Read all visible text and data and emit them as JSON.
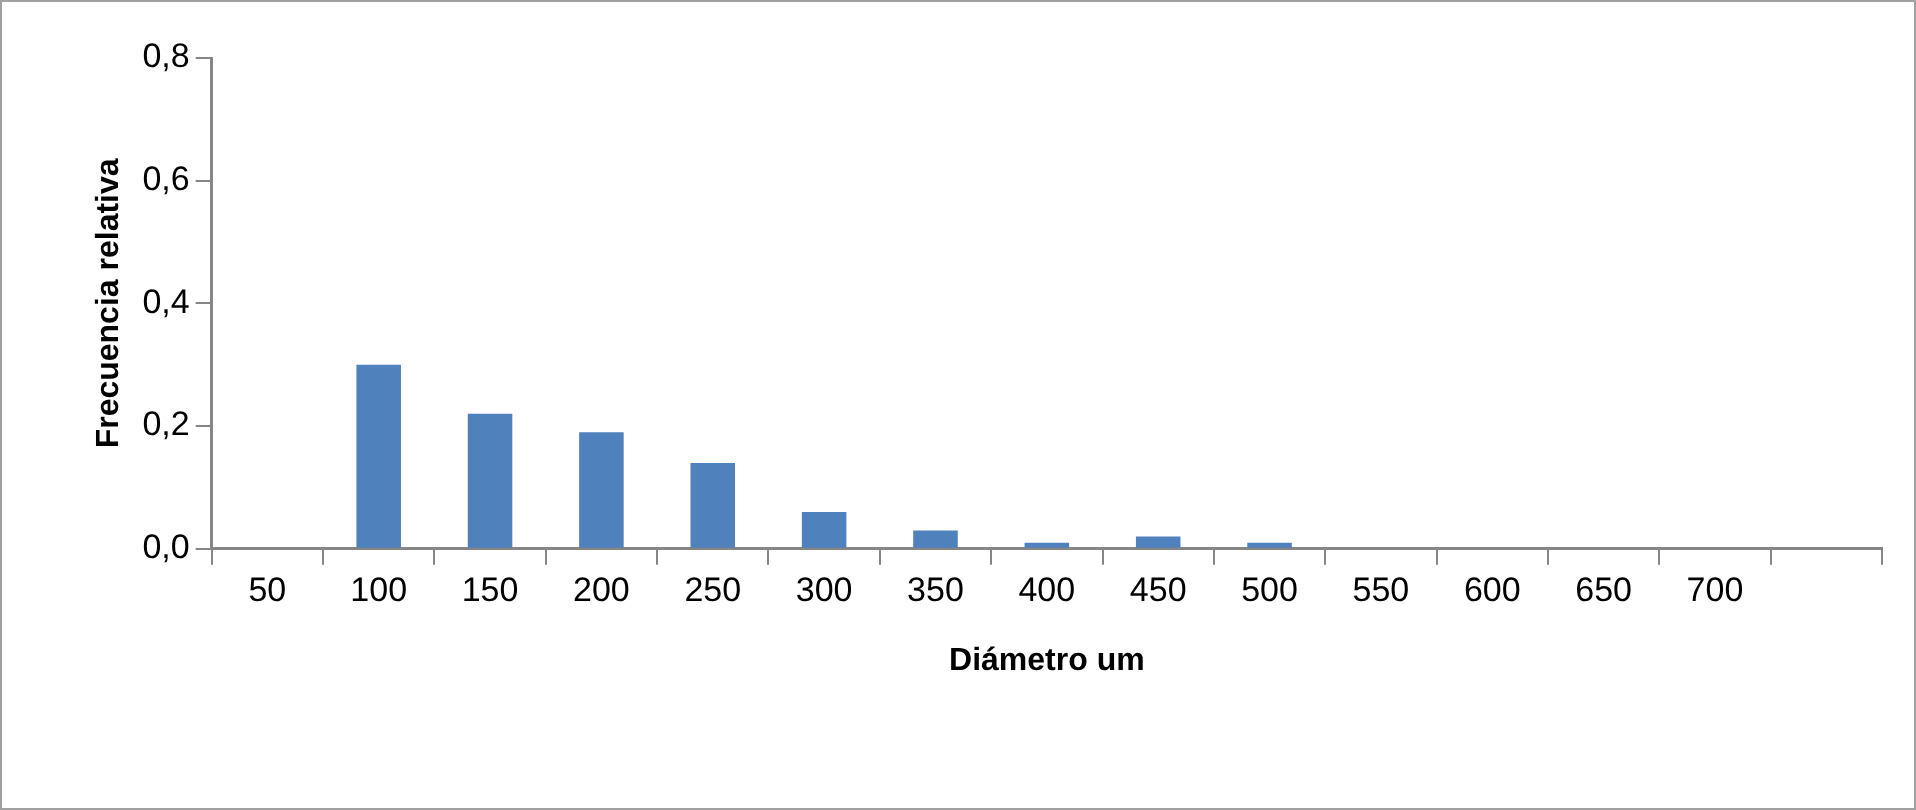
{
  "chart_data": {
    "type": "bar",
    "xlabel": "Diámetro um",
    "ylabel": "Frecuencia relativa",
    "categories": [
      "50",
      "100",
      "150",
      "200",
      "250",
      "300",
      "350",
      "400",
      "450",
      "500",
      "550",
      "600",
      "650",
      "700",
      null
    ],
    "values": [
      0,
      0.3,
      0.22,
      0.19,
      0.14,
      0.06,
      0.03,
      0.01,
      0.02,
      0.01,
      0,
      0,
      0,
      0,
      0
    ],
    "color": "#4f81bd",
    "ylim": [
      0,
      0.8
    ],
    "yticks": [
      {
        "value": 0,
        "label": "0,0"
      },
      {
        "value": 0.2,
        "label": "0,2"
      },
      {
        "value": 0.4,
        "label": "0,4"
      },
      {
        "value": 0.6,
        "label": "0,6"
      },
      {
        "value": 0.8,
        "label": "0,8"
      }
    ],
    "grid": false,
    "legend": false
  }
}
